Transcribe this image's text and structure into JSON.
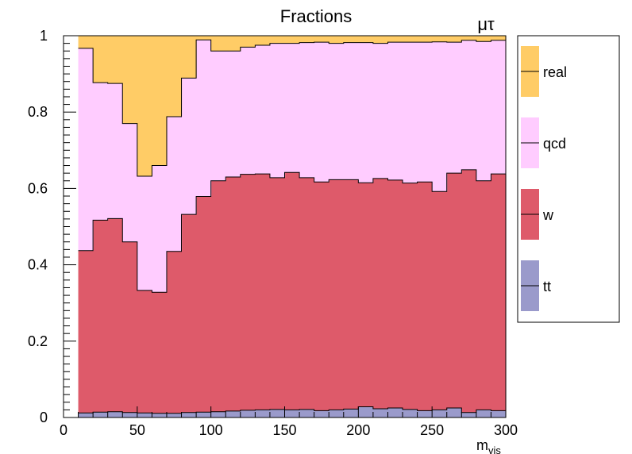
{
  "chart_data": {
    "type": "area",
    "title": "Fractions",
    "channel_label": "μτ",
    "xlabel_main": "m",
    "xlabel_sub": "vis",
    "ylabel": "",
    "xlim": [
      0,
      300
    ],
    "ylim": [
      0,
      1
    ],
    "x_ticks": [
      0,
      50,
      100,
      150,
      200,
      250,
      300
    ],
    "y_ticks": [
      0,
      0.2,
      0.4,
      0.6,
      0.8,
      1
    ],
    "y_tick_labels": [
      "0",
      "0.2",
      "0.4",
      "0.6",
      "0.8",
      "1"
    ],
    "grid": false,
    "legend_position": "right",
    "bin_edges": [
      10,
      20,
      30,
      40,
      50,
      60,
      70,
      80,
      90,
      100,
      110,
      120,
      130,
      140,
      150,
      160,
      170,
      180,
      190,
      200,
      210,
      220,
      230,
      240,
      250,
      260,
      270,
      280,
      290,
      300
    ],
    "series": [
      {
        "name": "tt",
        "color": "#9a9acb",
        "values": [
          0.012,
          0.014,
          0.015,
          0.013,
          0.012,
          0.011,
          0.011,
          0.013,
          0.014,
          0.015,
          0.017,
          0.019,
          0.02,
          0.021,
          0.02,
          0.021,
          0.018,
          0.02,
          0.022,
          0.028,
          0.023,
          0.025,
          0.021,
          0.018,
          0.02,
          0.025,
          0.013,
          0.02,
          0.018
        ]
      },
      {
        "name": "w",
        "color": "#de5a6a",
        "values": [
          0.425,
          0.503,
          0.506,
          0.447,
          0.321,
          0.317,
          0.424,
          0.519,
          0.565,
          0.605,
          0.613,
          0.618,
          0.618,
          0.607,
          0.622,
          0.607,
          0.599,
          0.603,
          0.601,
          0.587,
          0.603,
          0.597,
          0.593,
          0.599,
          0.572,
          0.615,
          0.636,
          0.6,
          0.62
        ]
      },
      {
        "name": "qcd",
        "color": "#ffccff",
        "values": [
          0.53,
          0.36,
          0.354,
          0.31,
          0.299,
          0.332,
          0.353,
          0.357,
          0.41,
          0.34,
          0.33,
          0.333,
          0.337,
          0.352,
          0.338,
          0.354,
          0.366,
          0.357,
          0.359,
          0.367,
          0.354,
          0.361,
          0.369,
          0.366,
          0.392,
          0.343,
          0.339,
          0.365,
          0.35
        ]
      },
      {
        "name": "real",
        "color": "#ffcc66",
        "values": [
          0.033,
          0.123,
          0.125,
          0.23,
          0.368,
          0.34,
          0.212,
          0.111,
          0.011,
          0.04,
          0.04,
          0.03,
          0.025,
          0.02,
          0.02,
          0.018,
          0.017,
          0.02,
          0.018,
          0.018,
          0.02,
          0.017,
          0.017,
          0.017,
          0.016,
          0.017,
          0.012,
          0.015,
          0.012
        ]
      }
    ]
  }
}
